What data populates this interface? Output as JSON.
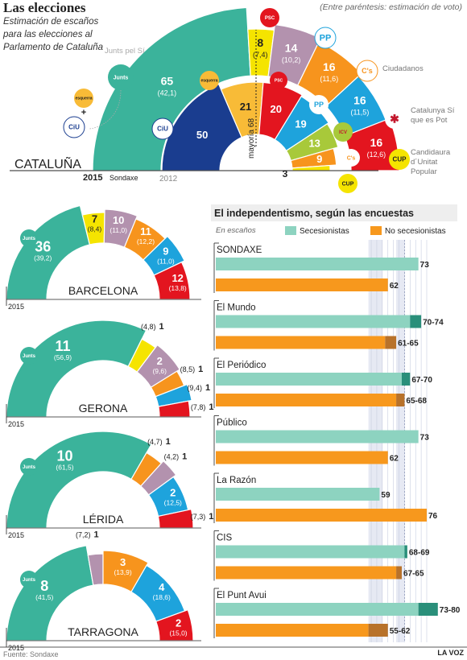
{
  "header": {
    "title": "Las elecciones",
    "subtitle": "Estimación de escaños para las elecciones al Parlamento de Cataluña",
    "note": "(Entre paréntesis: estimación de voto)"
  },
  "footer": {
    "source": "Fuente: Sondaxe",
    "credit": "LA VOZ"
  },
  "colors": {
    "junts": "#3bb39b",
    "cup": "#f5e400",
    "podemos": "#b392ae",
    "cs": "#f7941d",
    "pp": "#1ea3dc",
    "psc": "#e3151f",
    "erc": "#f8bb37",
    "ciu": "#1a3d8f",
    "secesionistas": "#8dd3c0",
    "nosecesionistas": "#f7981d"
  },
  "icons": [
    "junts-logo",
    "esquerra-logo",
    "ciu-logo",
    "psc-logo",
    "pp-logo",
    "cs-logo",
    "csqep-logo",
    "cup-logo",
    "icv-logo"
  ],
  "chart_data": [
    {
      "type": "pie",
      "name": "CATALUÑA",
      "title": "CATALUÑA",
      "year_label": "2015",
      "pollster": "Sondaxe",
      "majority_label": "mayoría 68",
      "series": [
        {
          "name": "Junts pel Sí",
          "seats": 65,
          "vote": "(42,1)"
        },
        {
          "name": "Candidaura d´Unitat Popular",
          "seats": 8,
          "vote": "(7,4)"
        },
        {
          "name": "Catalunya Sí que es Pot",
          "seats": 14,
          "vote": "(10,2)"
        },
        {
          "name": "Ciudadanos",
          "seats": 16,
          "vote": "(11,6)"
        },
        {
          "name": "PP",
          "seats": 16,
          "vote": "(11,5)"
        },
        {
          "name": "PSC",
          "seats": 16,
          "vote": "(12,6)"
        }
      ],
      "previous": {
        "label": "2012",
        "seats": [
          50,
          21,
          20,
          19,
          13,
          9,
          3
        ],
        "parties": [
          "CiU",
          "ERC",
          "PSC",
          "PP",
          "ICV-EUiA",
          "Cs",
          "CUP"
        ]
      }
    },
    {
      "type": "pie",
      "name": "BARCELONA",
      "year_label": "2015",
      "seats": [
        36,
        7,
        10,
        11,
        9,
        12
      ],
      "votes": [
        "(39,2)",
        "(8,4)",
        "(11,0)",
        "(12,2)",
        "(11,0)",
        "(13,8)"
      ]
    },
    {
      "type": "pie",
      "name": "GERONA",
      "year_label": "2015",
      "seats": [
        11,
        1,
        2,
        1,
        1,
        1
      ],
      "votes": [
        "(56,9)",
        "(4,8)",
        "(9,6)",
        "(8,5)",
        "(9,4)",
        "(7,8)"
      ]
    },
    {
      "type": "pie",
      "name": "LÉRIDA",
      "year_label": "2015",
      "seats": [
        10,
        1,
        1,
        2,
        1
      ],
      "votes": [
        "(61,5)",
        "(4,7)",
        "(4,2)",
        "(12,5)",
        "(7,3)"
      ]
    },
    {
      "type": "pie",
      "name": "TARRAGONA",
      "year_label": "2015",
      "seats": [
        8,
        1,
        3,
        4,
        2
      ],
      "votes": [
        "(41,5)",
        "(7,2)",
        "(13,9)",
        "(18,6)",
        "(15,0)"
      ]
    },
    {
      "type": "bar",
      "title": "El independentismo, según las encuestas",
      "unit_label": "En escaños",
      "legend": [
        "Secesionistas",
        "No secesionistas"
      ],
      "polls": [
        {
          "name": "SONDAXE",
          "sec": [
            73,
            73
          ],
          "nosec": [
            62,
            62
          ],
          "sec_label": "73",
          "nosec_label": "62"
        },
        {
          "name": "El Mundo",
          "sec": [
            70,
            74
          ],
          "nosec": [
            61,
            65
          ],
          "sec_label": "70-74",
          "nosec_label": "61-65"
        },
        {
          "name": "El Periódico",
          "sec": [
            67,
            70
          ],
          "nosec": [
            65,
            68
          ],
          "sec_label": "67-70",
          "nosec_label": "65-68"
        },
        {
          "name": "Público",
          "sec": [
            73,
            73
          ],
          "nosec": [
            62,
            62
          ],
          "sec_label": "73",
          "nosec_label": "62"
        },
        {
          "name": "La Razón",
          "sec": [
            59,
            59
          ],
          "nosec": [
            76,
            76
          ],
          "sec_label": "59",
          "nosec_label": "76"
        },
        {
          "name": "CIS",
          "sec": [
            68,
            69
          ],
          "nosec": [
            65,
            67
          ],
          "sec_label": "68-69",
          "nosec_label": "67-65"
        },
        {
          "name": "El Punt Avui",
          "sec": [
            73,
            80
          ],
          "nosec": [
            55,
            62
          ],
          "sec_label": "73-80",
          "nosec_label": "55-62"
        }
      ]
    }
  ]
}
